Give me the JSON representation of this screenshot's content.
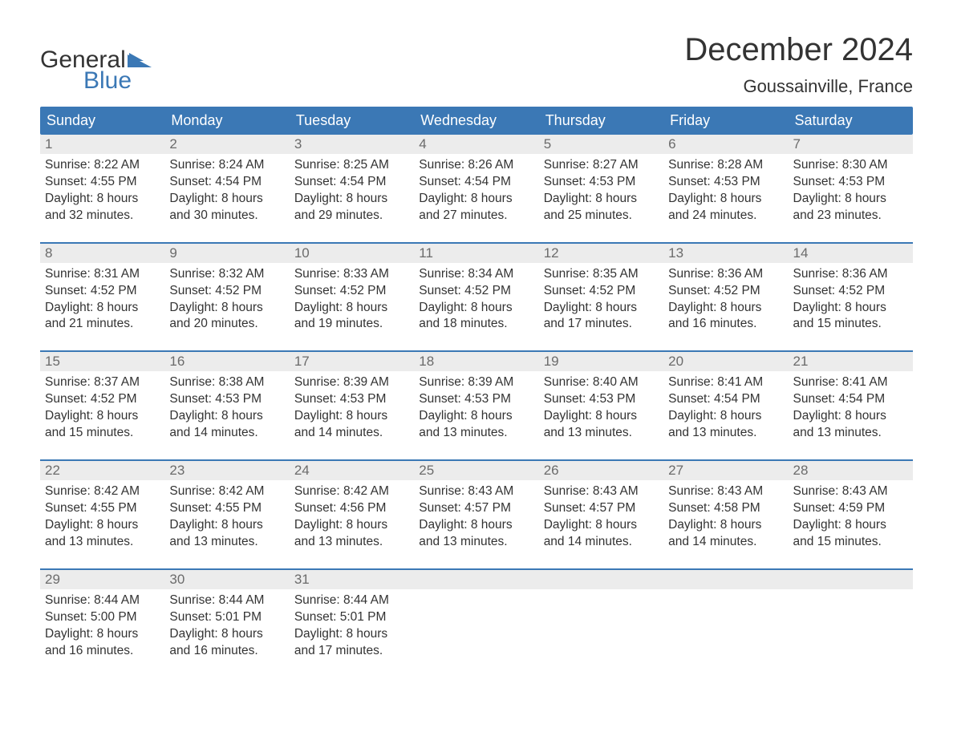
{
  "logo": {
    "word1": "General",
    "word2": "Blue",
    "word1_color": "#333333",
    "word2_color": "#3b78b5",
    "flag_color": "#3b78b5"
  },
  "title": "December 2024",
  "location": "Goussainville, France",
  "colors": {
    "header_bg": "#3b78b5",
    "header_text": "#ffffff",
    "daynum_bg": "#ececec",
    "daynum_text": "#6b6b6b",
    "body_text": "#333333",
    "week_border": "#3b78b5",
    "background": "#ffffff"
  },
  "font": {
    "family": "Arial",
    "title_size": 40,
    "location_size": 22,
    "weekday_size": 18,
    "daynum_size": 17,
    "body_size": 15.5
  },
  "weekdays": [
    "Sunday",
    "Monday",
    "Tuesday",
    "Wednesday",
    "Thursday",
    "Friday",
    "Saturday"
  ],
  "labels": {
    "sunrise": "Sunrise:",
    "sunset": "Sunset:",
    "daylight": "Daylight:"
  },
  "days": [
    {
      "n": 1,
      "sunrise": "8:22 AM",
      "sunset": "4:55 PM",
      "dl1": "8 hours",
      "dl2": "and 32 minutes."
    },
    {
      "n": 2,
      "sunrise": "8:24 AM",
      "sunset": "4:54 PM",
      "dl1": "8 hours",
      "dl2": "and 30 minutes."
    },
    {
      "n": 3,
      "sunrise": "8:25 AM",
      "sunset": "4:54 PM",
      "dl1": "8 hours",
      "dl2": "and 29 minutes."
    },
    {
      "n": 4,
      "sunrise": "8:26 AM",
      "sunset": "4:54 PM",
      "dl1": "8 hours",
      "dl2": "and 27 minutes."
    },
    {
      "n": 5,
      "sunrise": "8:27 AM",
      "sunset": "4:53 PM",
      "dl1": "8 hours",
      "dl2": "and 25 minutes."
    },
    {
      "n": 6,
      "sunrise": "8:28 AM",
      "sunset": "4:53 PM",
      "dl1": "8 hours",
      "dl2": "and 24 minutes."
    },
    {
      "n": 7,
      "sunrise": "8:30 AM",
      "sunset": "4:53 PM",
      "dl1": "8 hours",
      "dl2": "and 23 minutes."
    },
    {
      "n": 8,
      "sunrise": "8:31 AM",
      "sunset": "4:52 PM",
      "dl1": "8 hours",
      "dl2": "and 21 minutes."
    },
    {
      "n": 9,
      "sunrise": "8:32 AM",
      "sunset": "4:52 PM",
      "dl1": "8 hours",
      "dl2": "and 20 minutes."
    },
    {
      "n": 10,
      "sunrise": "8:33 AM",
      "sunset": "4:52 PM",
      "dl1": "8 hours",
      "dl2": "and 19 minutes."
    },
    {
      "n": 11,
      "sunrise": "8:34 AM",
      "sunset": "4:52 PM",
      "dl1": "8 hours",
      "dl2": "and 18 minutes."
    },
    {
      "n": 12,
      "sunrise": "8:35 AM",
      "sunset": "4:52 PM",
      "dl1": "8 hours",
      "dl2": "and 17 minutes."
    },
    {
      "n": 13,
      "sunrise": "8:36 AM",
      "sunset": "4:52 PM",
      "dl1": "8 hours",
      "dl2": "and 16 minutes."
    },
    {
      "n": 14,
      "sunrise": "8:36 AM",
      "sunset": "4:52 PM",
      "dl1": "8 hours",
      "dl2": "and 15 minutes."
    },
    {
      "n": 15,
      "sunrise": "8:37 AM",
      "sunset": "4:52 PM",
      "dl1": "8 hours",
      "dl2": "and 15 minutes."
    },
    {
      "n": 16,
      "sunrise": "8:38 AM",
      "sunset": "4:53 PM",
      "dl1": "8 hours",
      "dl2": "and 14 minutes."
    },
    {
      "n": 17,
      "sunrise": "8:39 AM",
      "sunset": "4:53 PM",
      "dl1": "8 hours",
      "dl2": "and 14 minutes."
    },
    {
      "n": 18,
      "sunrise": "8:39 AM",
      "sunset": "4:53 PM",
      "dl1": "8 hours",
      "dl2": "and 13 minutes."
    },
    {
      "n": 19,
      "sunrise": "8:40 AM",
      "sunset": "4:53 PM",
      "dl1": "8 hours",
      "dl2": "and 13 minutes."
    },
    {
      "n": 20,
      "sunrise": "8:41 AM",
      "sunset": "4:54 PM",
      "dl1": "8 hours",
      "dl2": "and 13 minutes."
    },
    {
      "n": 21,
      "sunrise": "8:41 AM",
      "sunset": "4:54 PM",
      "dl1": "8 hours",
      "dl2": "and 13 minutes."
    },
    {
      "n": 22,
      "sunrise": "8:42 AM",
      "sunset": "4:55 PM",
      "dl1": "8 hours",
      "dl2": "and 13 minutes."
    },
    {
      "n": 23,
      "sunrise": "8:42 AM",
      "sunset": "4:55 PM",
      "dl1": "8 hours",
      "dl2": "and 13 minutes."
    },
    {
      "n": 24,
      "sunrise": "8:42 AM",
      "sunset": "4:56 PM",
      "dl1": "8 hours",
      "dl2": "and 13 minutes."
    },
    {
      "n": 25,
      "sunrise": "8:43 AM",
      "sunset": "4:57 PM",
      "dl1": "8 hours",
      "dl2": "and 13 minutes."
    },
    {
      "n": 26,
      "sunrise": "8:43 AM",
      "sunset": "4:57 PM",
      "dl1": "8 hours",
      "dl2": "and 14 minutes."
    },
    {
      "n": 27,
      "sunrise": "8:43 AM",
      "sunset": "4:58 PM",
      "dl1": "8 hours",
      "dl2": "and 14 minutes."
    },
    {
      "n": 28,
      "sunrise": "8:43 AM",
      "sunset": "4:59 PM",
      "dl1": "8 hours",
      "dl2": "and 15 minutes."
    },
    {
      "n": 29,
      "sunrise": "8:44 AM",
      "sunset": "5:00 PM",
      "dl1": "8 hours",
      "dl2": "and 16 minutes."
    },
    {
      "n": 30,
      "sunrise": "8:44 AM",
      "sunset": "5:01 PM",
      "dl1": "8 hours",
      "dl2": "and 16 minutes."
    },
    {
      "n": 31,
      "sunrise": "8:44 AM",
      "sunset": "5:01 PM",
      "dl1": "8 hours",
      "dl2": "and 17 minutes."
    }
  ],
  "grid": {
    "start_weekday": 0,
    "total_cells": 35,
    "days_in_month": 31
  }
}
